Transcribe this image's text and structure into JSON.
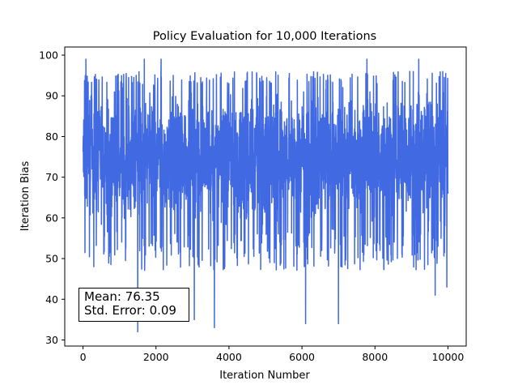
{
  "chart_data": {
    "type": "line",
    "title": "Policy Evaluation for 10,000 Iterations",
    "xlabel": "Iteration Number",
    "ylabel": "Iteration Bias",
    "xlim": [
      -500,
      10500
    ],
    "ylim": [
      28.5,
      102
    ],
    "xticks": [
      0,
      2000,
      4000,
      6000,
      8000,
      10000
    ],
    "yticks": [
      30,
      40,
      50,
      60,
      70,
      80,
      90,
      100
    ],
    "grid": false,
    "series_color": "#4169E1",
    "series": [
      {
        "n_points": 10000,
        "x_range": [
          0,
          10000
        ],
        "typical_band": [
          57,
          93
        ],
        "y_min": 32,
        "y_max": 99,
        "extreme_values": [
          {
            "x": 80,
            "y": 99
          },
          {
            "x": 1500,
            "y": 32
          },
          {
            "x": 1680,
            "y": 99
          },
          {
            "x": 2140,
            "y": 99
          },
          {
            "x": 3050,
            "y": 35
          },
          {
            "x": 3600,
            "y": 33
          },
          {
            "x": 6100,
            "y": 34
          },
          {
            "x": 7000,
            "y": 34
          },
          {
            "x": 7780,
            "y": 99
          },
          {
            "x": 9200,
            "y": 99
          },
          {
            "x": 9650,
            "y": 41
          },
          {
            "x": 9970,
            "y": 43
          }
        ]
      }
    ]
  },
  "annotation": {
    "mean_text": "Mean: 76.35",
    "stderr_text": "Std. Error: 0.09",
    "legend_location": "lower-left"
  }
}
